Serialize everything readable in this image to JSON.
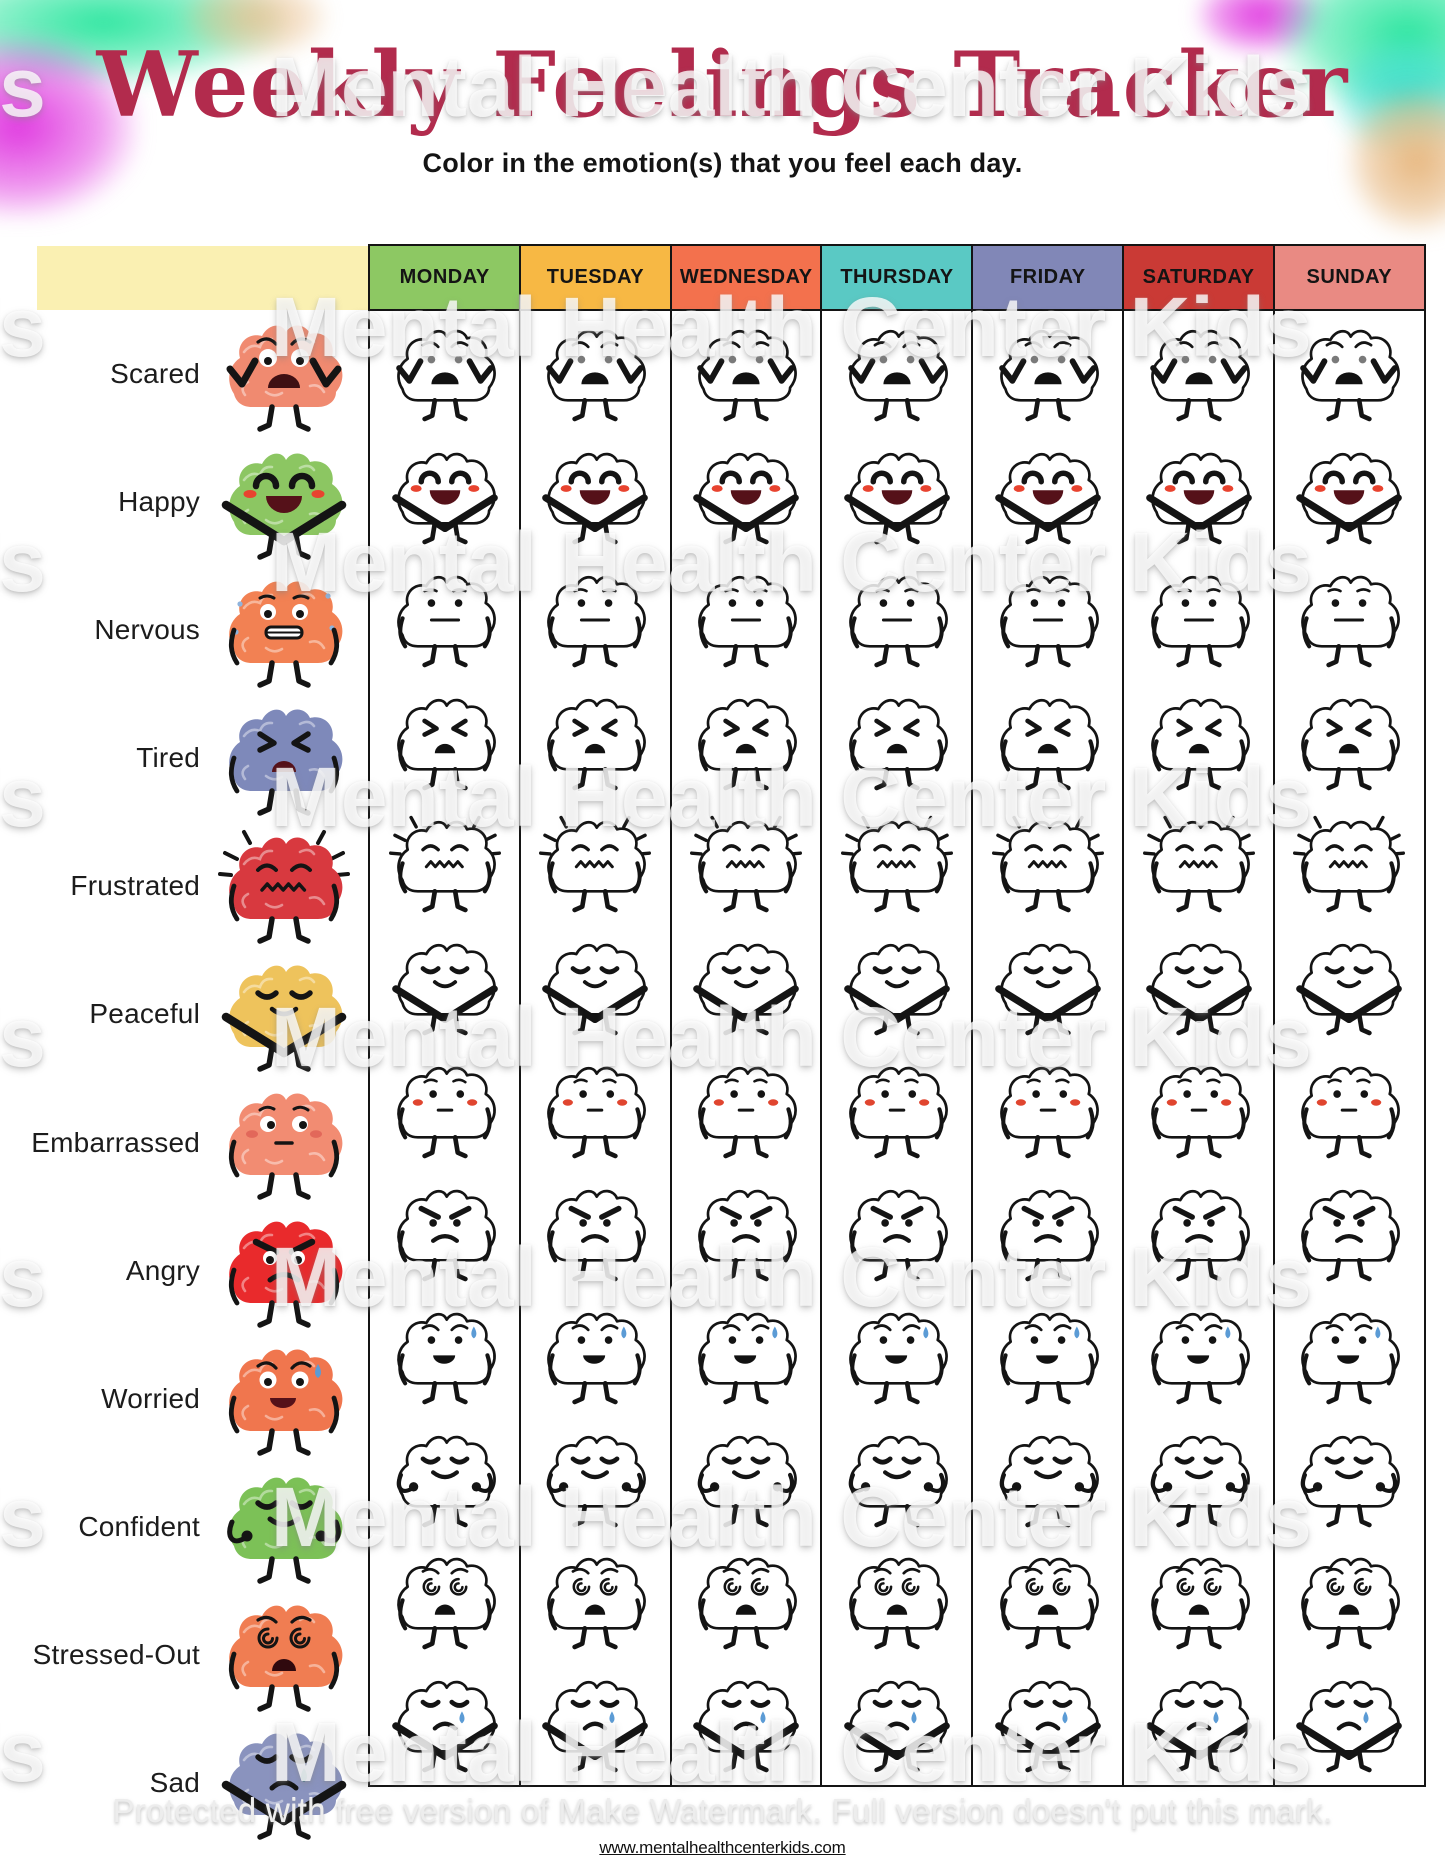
{
  "title": {
    "text": "Weekly Feelings Tracker",
    "color": "#b22b4d"
  },
  "subtitle": "Color in the emotion(s) that you feel each day.",
  "watermark": {
    "text": "Mental Health Center Kids",
    "footer_text": "Protected with free version of Make Watermark. Full version doesn't put this mark."
  },
  "footer": {
    "link": "www.mentalhealthcenterkids.com"
  },
  "table": {
    "label_header_color": "#faf0b2",
    "border_color": "#141414",
    "days": [
      {
        "label": "MONDAY",
        "color": "#8dc863"
      },
      {
        "label": "TUESDAY",
        "color": "#f7b844"
      },
      {
        "label": "WEDNESDAY",
        "color": "#f3714d"
      },
      {
        "label": "THURSDAY",
        "color": "#5ac9c4"
      },
      {
        "label": "FRIDAY",
        "color": "#8187b7"
      },
      {
        "label": "SATURDAY",
        "color": "#ca3a35"
      },
      {
        "label": "SUNDAY",
        "color": "#e98a83"
      }
    ],
    "emotions": [
      {
        "label": "Scared",
        "face": "scared",
        "color": "#f08a70"
      },
      {
        "label": "Happy",
        "face": "happy",
        "color": "#8cc662"
      },
      {
        "label": "Nervous",
        "face": "nervous",
        "color": "#f28153"
      },
      {
        "label": "Tired",
        "face": "tired",
        "color": "#7e89ba"
      },
      {
        "label": "Frustrated",
        "face": "frustrated",
        "color": "#d8393f"
      },
      {
        "label": "Peaceful",
        "face": "peaceful",
        "color": "#eec35c"
      },
      {
        "label": "Embarrassed",
        "face": "embarrassed",
        "color": "#f28c72"
      },
      {
        "label": "Angry",
        "face": "angry",
        "color": "#e92a2c"
      },
      {
        "label": "Worried",
        "face": "worried",
        "color": "#f0764e"
      },
      {
        "label": "Confident",
        "face": "confident",
        "color": "#7cc157"
      },
      {
        "label": "Stressed-Out",
        "face": "stressed",
        "color": "#f07d52"
      },
      {
        "label": "Sad",
        "face": "sad",
        "color": "#8a93be"
      }
    ]
  },
  "decor": {
    "splash_green": "#2ee6a0",
    "splash_magenta": "#e03ae0",
    "splash_tan": "#e7b77f",
    "splash_cyan": "#35dcd0"
  }
}
